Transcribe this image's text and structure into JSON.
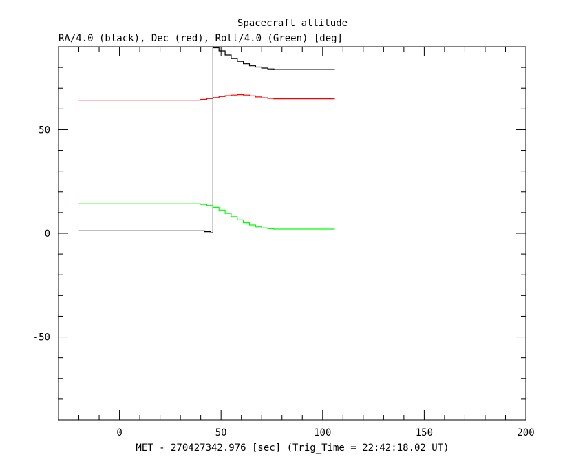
{
  "chart_data": {
    "type": "line",
    "title": "Spacecraft attitude",
    "subtitle": "RA/4.0 (black), Dec (red), Roll/4.0 (Green) [deg]",
    "xlabel": "MET - 270427342.976 [sec] (Trig_Time = 22:42:18.02 UT)",
    "ylabel": "",
    "xlim": [
      -30,
      200
    ],
    "ylim": [
      -90,
      90
    ],
    "xticks": [
      0,
      50,
      100,
      150,
      200
    ],
    "yticks": [
      -50,
      0,
      50
    ],
    "x_minor_step": 10,
    "y_minor_step": 10,
    "grid": false,
    "series": [
      {
        "color": "#000000",
        "step": true,
        "points": [
          [
            -20,
            1.2
          ],
          [
            38,
            1.2
          ],
          [
            42,
            0.8
          ],
          [
            45,
            0.3
          ],
          [
            46,
            0.3
          ],
          [
            46,
            89.5
          ],
          [
            49,
            88
          ],
          [
            52,
            86
          ],
          [
            55,
            84.3
          ],
          [
            58,
            83
          ],
          [
            61,
            81.8
          ],
          [
            64,
            80.8
          ],
          [
            67,
            80.2
          ],
          [
            70,
            79.7
          ],
          [
            73,
            79.3
          ],
          [
            76,
            79.0
          ],
          [
            106,
            79.0
          ]
        ]
      },
      {
        "color": "#ff0000",
        "step": true,
        "points": [
          [
            -20,
            64.2
          ],
          [
            38,
            64.2
          ],
          [
            40,
            64.6
          ],
          [
            43,
            65.0
          ],
          [
            46,
            65.5
          ],
          [
            49,
            66.0
          ],
          [
            52,
            66.4
          ],
          [
            55,
            66.7
          ],
          [
            58,
            66.9
          ],
          [
            61,
            66.7
          ],
          [
            64,
            66.3
          ],
          [
            67,
            65.8
          ],
          [
            70,
            65.4
          ],
          [
            73,
            65.1
          ],
          [
            76,
            64.9
          ],
          [
            106,
            64.9
          ]
        ]
      },
      {
        "color": "#00ff00",
        "step": true,
        "points": [
          [
            -20,
            14.2
          ],
          [
            38,
            14.2
          ],
          [
            40,
            13.9
          ],
          [
            43,
            13.4
          ],
          [
            46,
            12.5
          ],
          [
            49,
            11.2
          ],
          [
            52,
            9.6
          ],
          [
            55,
            8.0
          ],
          [
            58,
            6.5
          ],
          [
            61,
            5.1
          ],
          [
            64,
            4.0
          ],
          [
            67,
            3.1
          ],
          [
            70,
            2.6
          ],
          [
            73,
            2.2
          ],
          [
            76,
            2.0
          ],
          [
            106,
            2.0
          ]
        ]
      }
    ]
  }
}
